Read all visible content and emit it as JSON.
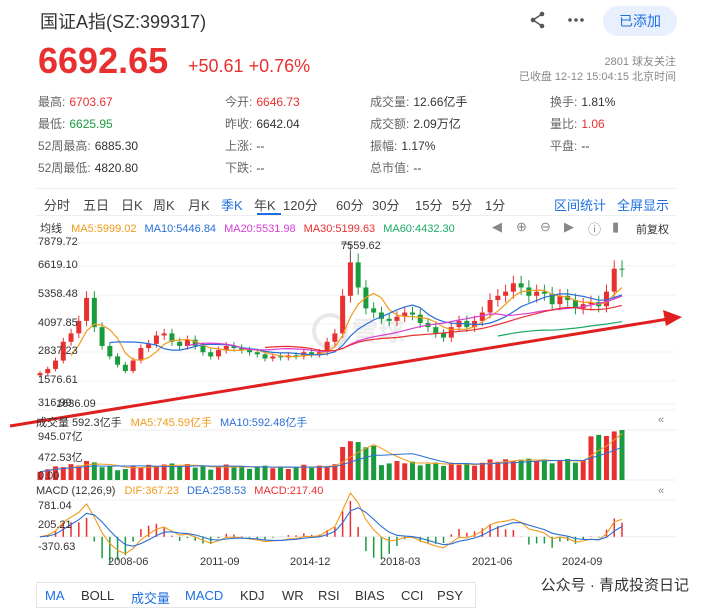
{
  "header": {
    "title": "国证A指(SZ:399317)",
    "add_button": "已添加",
    "price": "6692.65",
    "change": "+50.61",
    "change_pct": "+0.76%",
    "followers": "2801  球友关注",
    "status": "已收盘  12-12  15:04:15  北京时间"
  },
  "stats": [
    [
      {
        "label": "最高:",
        "value": "6703.67",
        "color": "red"
      },
      {
        "label": "今开:",
        "value": "6646.73",
        "color": "red"
      },
      {
        "label": "成交量:",
        "value": "12.66亿手",
        "color": ""
      },
      {
        "label": "换手:",
        "value": "1.81%",
        "color": ""
      }
    ],
    [
      {
        "label": "最低:",
        "value": "6625.95",
        "color": "green"
      },
      {
        "label": "昨收:",
        "value": "6642.04",
        "color": ""
      },
      {
        "label": "成交额:",
        "value": "2.09万亿",
        "color": ""
      },
      {
        "label": "量比:",
        "value": "1.06",
        "color": "red"
      }
    ],
    [
      {
        "label": "52周最高:",
        "value": "6885.30",
        "color": ""
      },
      {
        "label": "上涨:",
        "value": "--",
        "color": ""
      },
      {
        "label": "振幅:",
        "value": "1.17%",
        "color": ""
      },
      {
        "label": "平盘:",
        "value": "--",
        "color": ""
      }
    ],
    [
      {
        "label": "52周最低:",
        "value": "4820.80",
        "color": ""
      },
      {
        "label": "下跌:",
        "value": "--",
        "color": ""
      },
      {
        "label": "总市值:",
        "value": "--",
        "color": ""
      }
    ]
  ],
  "tabs": [
    "分时",
    "五日",
    "日K",
    "周K",
    "月K",
    "季K",
    "年K",
    "120分",
    "60分",
    "30分",
    "15分",
    "5分",
    "1分"
  ],
  "active_tab": "季K",
  "tabs_right": [
    "区间统计",
    "全屏显示"
  ],
  "ma_legend": {
    "label": "均线",
    "items": [
      {
        "text": "MA5:5999.02",
        "color": "#f29a1a"
      },
      {
        "text": "MA10:5446.84",
        "color": "#2a6fd6"
      },
      {
        "text": "MA20:5531.98",
        "color": "#d63fd6"
      },
      {
        "text": "MA30:5199.63",
        "color": "#e93030"
      },
      {
        "text": "MA60:4432.30",
        "color": "#1aaa66"
      }
    ],
    "fq": "前复权"
  },
  "price_axis": [
    "7879.72",
    "6619.10",
    "5358.48",
    "4097.85",
    "2837.23",
    "1576.61",
    "316.99"
  ],
  "high_marker": "7559.62",
  "low_marker": "1636.09",
  "volume": {
    "label": "成交量 592.3亿手",
    "items": [
      {
        "text": "MA5:745.59亿手",
        "color": "#f29a1a"
      },
      {
        "text": "MA10:592.48亿手",
        "color": "#2a6fd6"
      }
    ],
    "axis": [
      "945.07亿",
      "472.53亿",
      "0.00"
    ]
  },
  "macd": {
    "label": "MACD (12,26,9)",
    "items": [
      {
        "text": "DIF:367.23",
        "color": "#f29a1a"
      },
      {
        "text": "DEA:258.53",
        "color": "#2a6fd6"
      },
      {
        "text": "MACD:217.40",
        "color": "#e93030"
      }
    ],
    "axis": [
      "781.04",
      "205.21",
      "-370.63"
    ]
  },
  "dates": [
    "2008-06",
    "2011-09",
    "2014-12",
    "2018-03",
    "2021-06",
    "2024-09"
  ],
  "bottom_tabs": [
    "MA",
    "BOLL",
    "成交量",
    "MACD",
    "KDJ",
    "WR",
    "RSI",
    "BIAS",
    "CCI",
    "PSY"
  ],
  "bottom_active": [
    "MA",
    "成交量",
    "MACD"
  ],
  "watermark": "公众号 · 青成投资日记",
  "colors": {
    "up": "#e93030",
    "down": "#1a9b3c",
    "accent": "#1f6fe0",
    "arrow": "#e02020"
  }
}
